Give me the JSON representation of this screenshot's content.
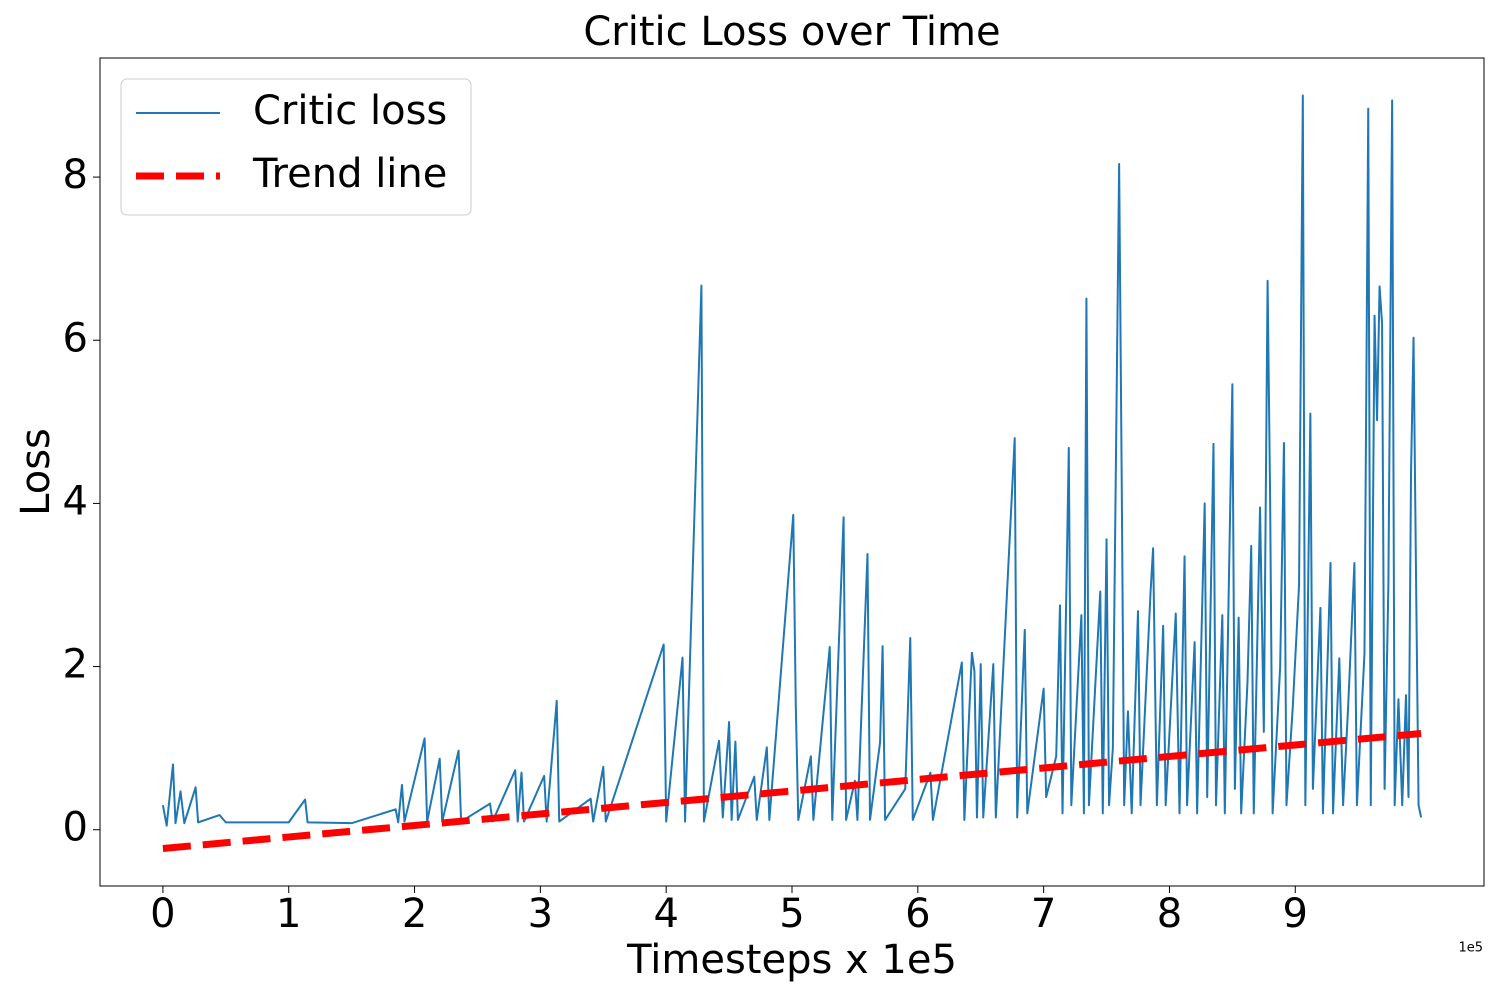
{
  "chart_data": {
    "type": "line",
    "title": "Critic Loss over Time",
    "x_label": "Timesteps x 1e5",
    "y_label": "Loss",
    "x_offset_label": "1e5",
    "xlim": [
      -0.5,
      10.5
    ],
    "ylim": [
      -0.69,
      9.46
    ],
    "xticks": [
      0,
      1,
      2,
      3,
      4,
      5,
      6,
      7,
      8,
      9
    ],
    "yticks": [
      0,
      2,
      4,
      6,
      8
    ],
    "legend": "upper-left",
    "series": [
      {
        "name": "Critic loss",
        "color": "#1f77b4",
        "style": "solid",
        "x": [
          0,
          0.03,
          0.08,
          0.1,
          0.14,
          0.17,
          0.26,
          0.28,
          0.45,
          0.5,
          1.0,
          1.13,
          1.15,
          1.5,
          1.85,
          1.87,
          1.9,
          1.92,
          2.08,
          2.1,
          2.2,
          2.22,
          2.35,
          2.37,
          2.6,
          2.62,
          2.8,
          2.82,
          2.85,
          2.87,
          3.03,
          3.05,
          3.13,
          3.15,
          3.4,
          3.42,
          3.5,
          3.52,
          3.98,
          4.0,
          4.13,
          4.15,
          4.28,
          4.3,
          4.42,
          4.45,
          4.5,
          4.52,
          4.55,
          4.57,
          4.7,
          4.72,
          4.8,
          4.82,
          5.01,
          5.03,
          5.05,
          5.15,
          5.17,
          5.3,
          5.32,
          5.41,
          5.43,
          5.5,
          5.52,
          5.6,
          5.62,
          5.7,
          5.72,
          5.74,
          5.9,
          5.94,
          5.96,
          6.1,
          6.12,
          6.35,
          6.37,
          6.43,
          6.45,
          6.47,
          6.5,
          6.52,
          6.6,
          6.62,
          6.77,
          6.79,
          6.85,
          6.87,
          7.0,
          7.02,
          7.1,
          7.13,
          7.15,
          7.2,
          7.22,
          7.3,
          7.32,
          7.34,
          7.36,
          7.45,
          7.47,
          7.5,
          7.52,
          7.55,
          7.6,
          7.62,
          7.64,
          7.67,
          7.7,
          7.75,
          7.77,
          7.85,
          7.87,
          7.9,
          7.95,
          7.97,
          8.05,
          8.08,
          8.12,
          8.14,
          8.2,
          8.22,
          8.28,
          8.3,
          8.35,
          8.37,
          8.42,
          8.44,
          8.5,
          8.52,
          8.55,
          8.57,
          8.62,
          8.65,
          8.67,
          8.72,
          8.75,
          8.78,
          8.8,
          8.82,
          8.88,
          8.91,
          8.93,
          8.98,
          9.03,
          9.06,
          9.08,
          9.12,
          9.14,
          9.2,
          9.22,
          9.28,
          9.3,
          9.35,
          9.38,
          9.42,
          9.47,
          9.49,
          9.55,
          9.58,
          9.6,
          9.63,
          9.65,
          9.67,
          9.69,
          9.71,
          9.74,
          9.77,
          9.79,
          9.82,
          9.85,
          9.88,
          9.9,
          9.92,
          9.94,
          9.96,
          9.98,
          10.0
        ],
        "values": [
          0.3,
          0.05,
          0.8,
          0.08,
          0.47,
          0.08,
          0.52,
          0.09,
          0.18,
          0.09,
          0.09,
          0.37,
          0.09,
          0.08,
          0.25,
          0.09,
          0.55,
          0.1,
          1.12,
          0.1,
          0.87,
          0.1,
          0.97,
          0.1,
          0.32,
          0.1,
          0.73,
          0.1,
          0.7,
          0.1,
          0.66,
          0.1,
          1.58,
          0.1,
          0.38,
          0.1,
          0.77,
          0.1,
          2.27,
          0.1,
          2.11,
          0.1,
          6.67,
          0.1,
          1.09,
          0.15,
          1.32,
          0.12,
          1.08,
          0.12,
          0.65,
          0.12,
          1.01,
          0.12,
          3.86,
          1.53,
          0.12,
          0.9,
          0.12,
          2.24,
          0.12,
          3.83,
          0.12,
          0.6,
          0.12,
          3.38,
          0.12,
          1.07,
          2.25,
          0.12,
          0.5,
          2.35,
          0.12,
          0.7,
          0.12,
          2.05,
          0.12,
          2.17,
          1.94,
          0.15,
          2.03,
          0.15,
          2.03,
          0.15,
          4.8,
          0.15,
          2.45,
          0.2,
          1.73,
          0.4,
          0.9,
          2.75,
          0.2,
          4.68,
          0.3,
          2.63,
          0.2,
          6.51,
          0.3,
          2.92,
          0.2,
          3.56,
          0.3,
          1.0,
          8.16,
          4.38,
          0.3,
          1.45,
          0.2,
          2.68,
          0.3,
          2.92,
          3.45,
          0.3,
          2.5,
          0.3,
          2.65,
          0.2,
          3.35,
          0.3,
          2.3,
          0.2,
          4.0,
          0.4,
          4.73,
          0.3,
          2.63,
          0.2,
          5.46,
          0.5,
          2.6,
          0.2,
          1.8,
          3.48,
          0.2,
          3.95,
          1.2,
          6.73,
          4.08,
          0.2,
          2.0,
          4.74,
          0.3,
          1.5,
          3.0,
          9.0,
          0.3,
          5.1,
          0.5,
          2.72,
          0.2,
          3.27,
          0.2,
          2.1,
          0.3,
          1.5,
          3.27,
          0.3,
          2.16,
          8.84,
          0.3,
          6.3,
          5.02,
          6.66,
          6.2,
          0.5,
          3.0,
          8.94,
          0.3,
          1.6,
          0.3,
          1.65,
          0.4,
          4.38,
          6.03,
          3.08,
          0.3,
          0.15
        ]
      },
      {
        "name": "Trend line",
        "color": "#ff0000",
        "style": "dashed",
        "x": [
          0,
          10.0
        ],
        "values": [
          -0.23,
          1.18
        ]
      }
    ]
  }
}
